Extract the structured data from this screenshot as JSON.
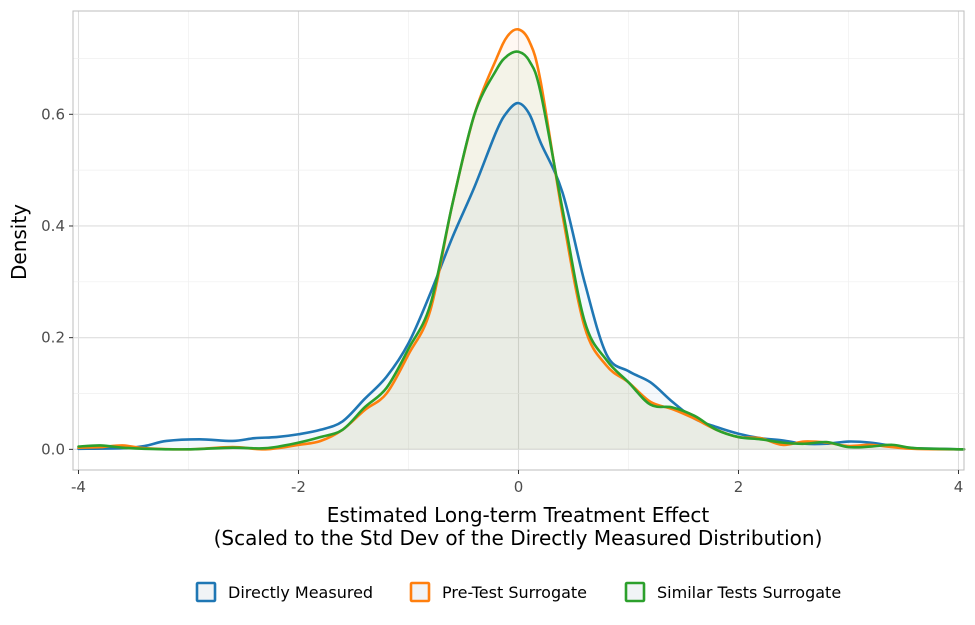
{
  "chart_data": {
    "type": "line",
    "title": "",
    "xlabel_line1": "Estimated Long-term Treatment Effect",
    "xlabel_line2": "(Scaled to the Std Dev of the Directly Measured Distribution)",
    "ylabel": "Density",
    "xlim": [
      -4.05,
      4.05
    ],
    "ylim": [
      -0.037,
      0.785
    ],
    "x_ticks": [
      -4,
      -2,
      0,
      2,
      4
    ],
    "x_tick_labels": [
      "-4",
      "-2",
      "0",
      "2",
      "4"
    ],
    "y_ticks": [
      0.0,
      0.2,
      0.4,
      0.6
    ],
    "y_tick_labels": [
      "0.0",
      "0.2",
      "0.4",
      "0.6"
    ],
    "grid": true,
    "legend_position": "bottom",
    "series": [
      {
        "name": "Directly Measured",
        "color": "#1f77b4",
        "x": [
          -4.0,
          -3.6,
          -3.4,
          -3.2,
          -2.9,
          -2.6,
          -2.4,
          -2.2,
          -2.0,
          -1.8,
          -1.6,
          -1.4,
          -1.2,
          -1.0,
          -0.8,
          -0.6,
          -0.4,
          -0.2,
          -0.1,
          0.0,
          0.1,
          0.2,
          0.4,
          0.6,
          0.8,
          1.0,
          1.2,
          1.4,
          1.6,
          1.8,
          2.0,
          2.2,
          2.4,
          2.6,
          2.8,
          3.0,
          3.2,
          3.4,
          3.6,
          4.05
        ],
        "y": [
          0.001,
          0.002,
          0.006,
          0.015,
          0.018,
          0.015,
          0.02,
          0.022,
          0.027,
          0.035,
          0.05,
          0.09,
          0.13,
          0.19,
          0.28,
          0.38,
          0.47,
          0.57,
          0.605,
          0.62,
          0.6,
          0.55,
          0.46,
          0.3,
          0.17,
          0.14,
          0.12,
          0.085,
          0.055,
          0.04,
          0.028,
          0.02,
          0.016,
          0.01,
          0.01,
          0.014,
          0.012,
          0.006,
          0.002,
          0.0
        ]
      },
      {
        "name": "Pre-Test Surrogate",
        "color": "#ff7f0e",
        "x": [
          -4.0,
          -3.8,
          -3.6,
          -3.4,
          -3.0,
          -2.6,
          -2.3,
          -2.0,
          -1.8,
          -1.6,
          -1.4,
          -1.2,
          -1.0,
          -0.8,
          -0.6,
          -0.4,
          -0.2,
          -0.1,
          0.0,
          0.1,
          0.2,
          0.4,
          0.6,
          0.8,
          1.0,
          1.2,
          1.4,
          1.6,
          1.8,
          2.0,
          2.2,
          2.4,
          2.6,
          2.8,
          3.0,
          3.2,
          3.4,
          3.6,
          4.05
        ],
        "y": [
          0.003,
          0.004,
          0.007,
          0.002,
          0.0,
          0.004,
          0.0,
          0.008,
          0.015,
          0.035,
          0.07,
          0.1,
          0.17,
          0.25,
          0.44,
          0.6,
          0.7,
          0.74,
          0.752,
          0.73,
          0.66,
          0.42,
          0.22,
          0.15,
          0.12,
          0.085,
          0.072,
          0.055,
          0.035,
          0.022,
          0.02,
          0.008,
          0.014,
          0.012,
          0.006,
          0.008,
          0.004,
          0.001,
          0.0
        ]
      },
      {
        "name": "Similar Tests Surrogate",
        "color": "#2ca02c",
        "x": [
          -4.0,
          -3.8,
          -3.6,
          -3.4,
          -3.0,
          -2.6,
          -2.3,
          -2.0,
          -1.8,
          -1.6,
          -1.4,
          -1.2,
          -1.0,
          -0.8,
          -0.6,
          -0.4,
          -0.2,
          -0.1,
          0.0,
          0.1,
          0.2,
          0.4,
          0.6,
          0.8,
          1.0,
          1.2,
          1.4,
          1.6,
          1.8,
          2.0,
          2.2,
          2.4,
          2.6,
          2.8,
          3.0,
          3.2,
          3.4,
          3.6,
          4.05
        ],
        "y": [
          0.005,
          0.007,
          0.003,
          0.001,
          0.0,
          0.003,
          0.002,
          0.012,
          0.022,
          0.035,
          0.075,
          0.11,
          0.18,
          0.26,
          0.44,
          0.6,
          0.68,
          0.705,
          0.712,
          0.695,
          0.64,
          0.43,
          0.23,
          0.16,
          0.12,
          0.08,
          0.075,
          0.06,
          0.035,
          0.022,
          0.018,
          0.012,
          0.01,
          0.013,
          0.004,
          0.005,
          0.008,
          0.002,
          0.0
        ]
      }
    ]
  }
}
